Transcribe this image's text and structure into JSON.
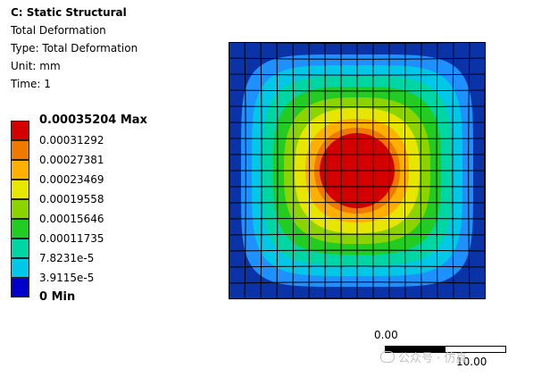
{
  "header": {
    "title": "C: Static Structural",
    "result_name": "Total Deformation",
    "type": "Type: Total Deformation",
    "unit": "Unit: mm",
    "time": "Time: 1"
  },
  "legend": {
    "items": [
      {
        "label": "0.00035204 Max",
        "color": "#d40000"
      },
      {
        "label": "0.00031292",
        "color": "#f07a00"
      },
      {
        "label": "0.00027381",
        "color": "#ffb000"
      },
      {
        "label": "0.00023469",
        "color": "#e6e600"
      },
      {
        "label": "0.00019558",
        "color": "#8cd400"
      },
      {
        "label": "0.00015646",
        "color": "#22cc22"
      },
      {
        "label": "0.00011735",
        "color": "#00d6a4"
      },
      {
        "label": "7.8231e-5",
        "color": "#00c8e6"
      },
      {
        "label": "3.9115e-5",
        "color": "#1e90ff"
      },
      {
        "label": "0 Min",
        "color": "#0000cc"
      }
    ]
  },
  "contour": {
    "mesh_divisions": 16,
    "band_colors": [
      "#0b33a8",
      "#1e90ff",
      "#00c8e6",
      "#00d6a4",
      "#22cc22",
      "#8cd400",
      "#e6e600",
      "#ffb000",
      "#f07a00",
      "#d40000"
    ]
  },
  "scale_bar": {
    "start": "0.00",
    "end": "10.00"
  },
  "watermark": {
    "text": "公众号 · 仿真"
  }
}
